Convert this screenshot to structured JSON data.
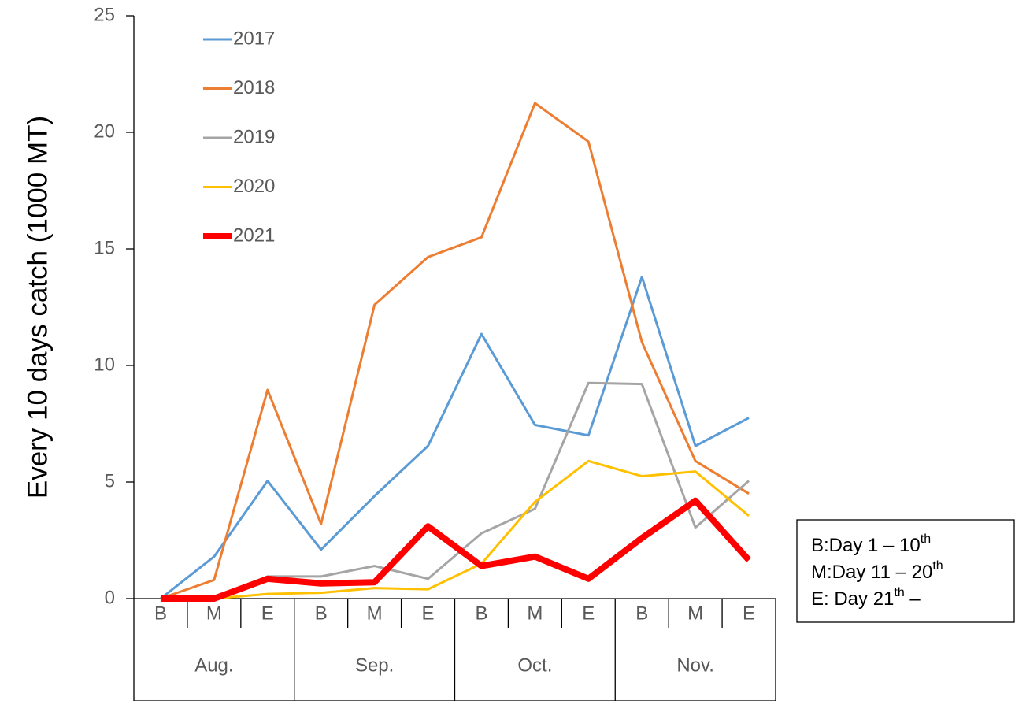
{
  "chart_data": {
    "type": "line",
    "y_label": "Every 10 days catch (1000 MT)",
    "categories": [
      "B",
      "M",
      "E",
      "B",
      "M",
      "E",
      "B",
      "M",
      "E",
      "B",
      "M",
      "E"
    ],
    "groups": [
      "Aug.",
      "Sep.",
      "Oct.",
      "Nov."
    ],
    "series": [
      {
        "name": "2017",
        "color": "#5b9bd5",
        "line_width": 3,
        "values": [
          0,
          1.8,
          5.05,
          2.1,
          4.4,
          6.55,
          11.35,
          7.45,
          7.0,
          13.8,
          6.55,
          7.75
        ]
      },
      {
        "name": "2018",
        "color": "#ed7d31",
        "line_width": 3,
        "values": [
          0,
          0.8,
          8.95,
          3.2,
          12.6,
          14.65,
          15.5,
          21.25,
          19.6,
          11.0,
          5.9,
          4.5
        ]
      },
      {
        "name": "2019",
        "color": "#a5a5a5",
        "line_width": 3,
        "values": [
          0,
          0,
          0.95,
          0.95,
          1.4,
          0.85,
          2.8,
          3.85,
          9.25,
          9.2,
          3.05,
          5.05
        ]
      },
      {
        "name": "2020",
        "color": "#ffc000",
        "line_width": 3,
        "values": [
          0,
          0,
          0.2,
          0.25,
          0.45,
          0.4,
          1.5,
          4.15,
          5.9,
          5.25,
          5.45,
          3.55
        ]
      },
      {
        "name": "2021",
        "color": "#ff0000",
        "line_width": 8,
        "values": [
          0,
          0,
          0.85,
          0.65,
          0.7,
          3.1,
          1.4,
          1.8,
          0.85,
          2.6,
          4.2,
          1.65
        ]
      }
    ],
    "ylim": [
      0,
      25
    ],
    "yticks": [
      0,
      5,
      10,
      15,
      20,
      25
    ],
    "grid": false,
    "legend": "upper left",
    "notes": [
      {
        "text": "B:Day 1 – 10",
        "sup": "th"
      },
      {
        "text": "M:Day 11 – 20",
        "sup": "th"
      },
      {
        "text": "E: Day 21",
        "sup": "th",
        "after": " –"
      }
    ]
  }
}
